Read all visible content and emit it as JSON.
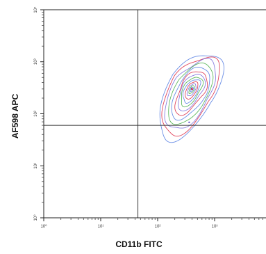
{
  "chart_data": {
    "type": "contour",
    "xlabel": "CD11b FITC",
    "ylabel": "AF598 APC",
    "x_scale": "log",
    "y_scale": "log",
    "xlim": [
      1,
      10000
    ],
    "ylim": [
      1,
      10000
    ],
    "x_ticks": [
      {
        "value": 1,
        "label": "10⁰"
      },
      {
        "value": 10,
        "label": "10¹"
      },
      {
        "value": 100,
        "label": "10²"
      },
      {
        "value": 1000,
        "label": "10³"
      },
      {
        "value": 10000,
        "label": "10⁴"
      }
    ],
    "y_ticks": [
      {
        "value": 1,
        "label": "10⁰"
      },
      {
        "value": 10,
        "label": "10¹"
      },
      {
        "value": 100,
        "label": "10²"
      },
      {
        "value": 1000,
        "label": "10³"
      },
      {
        "value": 10000,
        "label": "10⁴"
      }
    ],
    "quadrant_gates": {
      "x": 45,
      "y": 60
    },
    "population": {
      "center_x": 400,
      "center_y": 300
    },
    "contour_colors": [
      "#6a8ee6",
      "#e0445c",
      "#8b7fe0",
      "#5fb85f"
    ],
    "grid": false,
    "legend": "none"
  }
}
